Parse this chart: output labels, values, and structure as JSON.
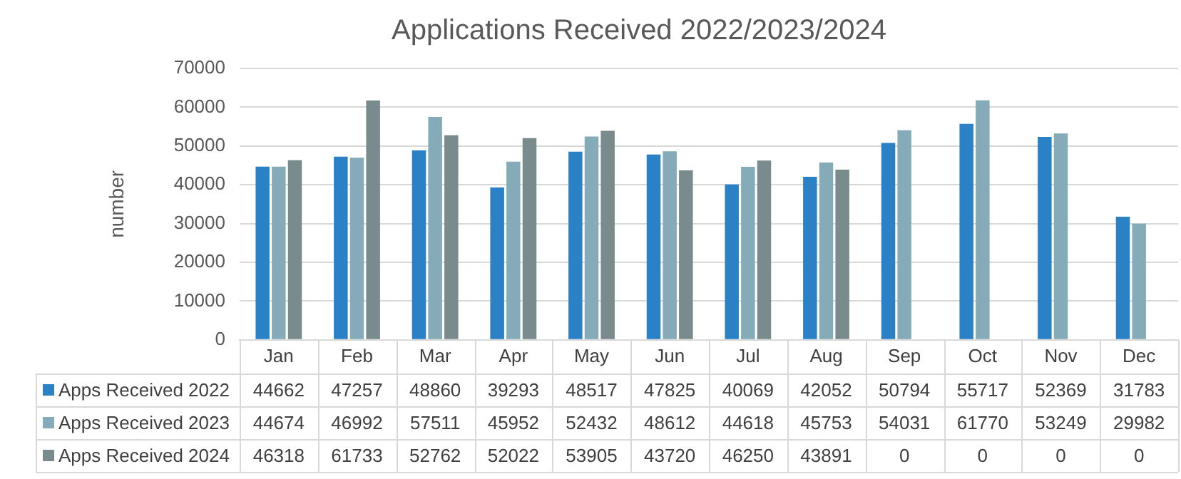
{
  "chart_data": {
    "type": "bar",
    "title": "Applications Received 2022/2023/2024",
    "ylabel": "number",
    "categories": [
      "Jan",
      "Feb",
      "Mar",
      "Apr",
      "May",
      "Jun",
      "Jul",
      "Aug",
      "Sep",
      "Oct",
      "Nov",
      "Dec"
    ],
    "series": [
      {
        "name": "Apps Received 2022",
        "color": "#2a81c6",
        "values": [
          44662,
          47257,
          48860,
          39293,
          48517,
          47825,
          40069,
          42052,
          50794,
          55717,
          52369,
          31783
        ]
      },
      {
        "name": "Apps Received 2023",
        "color": "#86abb8",
        "values": [
          44674,
          46992,
          57511,
          45952,
          52432,
          48612,
          44618,
          45753,
          54031,
          61770,
          53249,
          29982
        ]
      },
      {
        "name": "Apps Received 2024",
        "color": "#7a8b8d",
        "values": [
          46318,
          61733,
          52762,
          52022,
          53905,
          43720,
          46250,
          43891,
          0,
          0,
          0,
          0
        ]
      }
    ],
    "ylim": [
      0,
      70000
    ],
    "yticks": [
      0,
      10000,
      20000,
      30000,
      40000,
      50000,
      60000,
      70000
    ],
    "grid": "y",
    "legend": "bottom",
    "data_labels": true
  }
}
